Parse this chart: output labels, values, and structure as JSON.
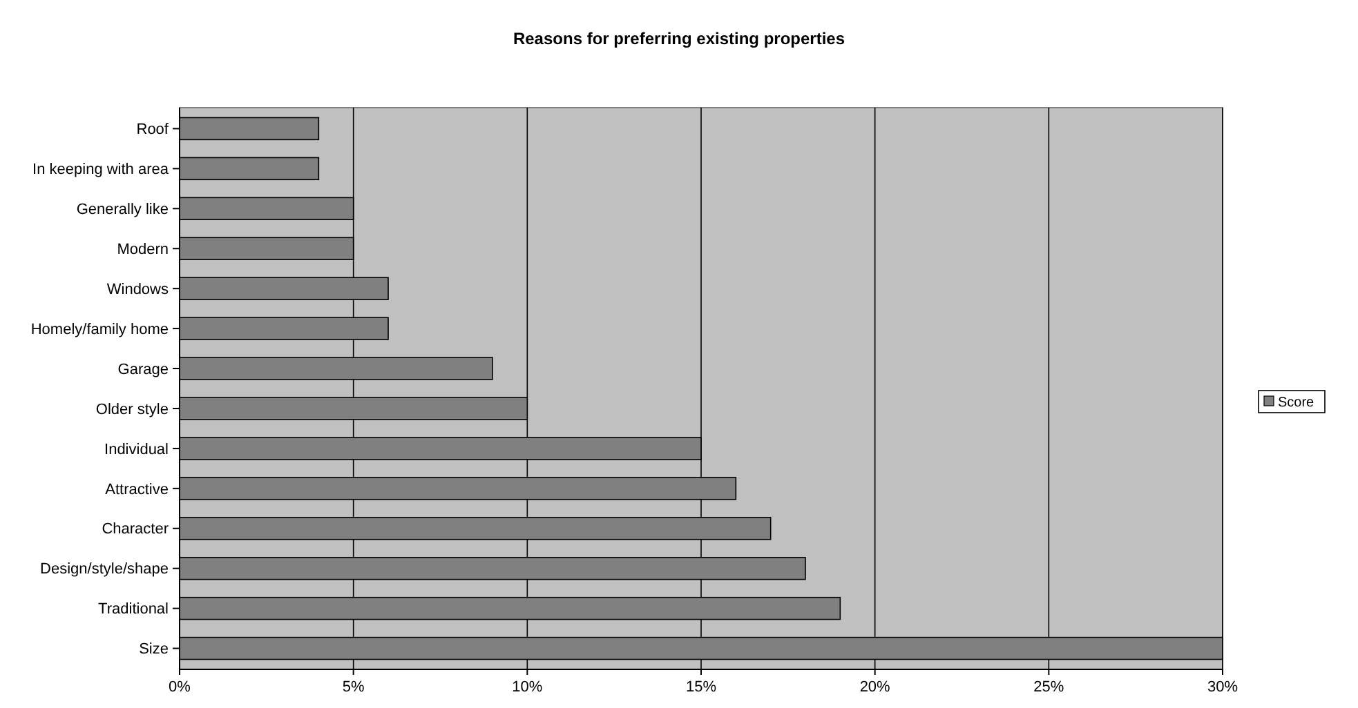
{
  "chart_data": {
    "type": "bar",
    "orientation": "horizontal",
    "title": "Reasons for preferring existing properties",
    "categories": [
      "Roof",
      "In keeping with area",
      "Generally like",
      "Modern",
      "Windows",
      "Homely/family home",
      "Garage",
      "Older style",
      "Individual",
      "Attractive",
      "Character",
      "Design/style/shape",
      "Traditional",
      "Size"
    ],
    "series": [
      {
        "name": "Score",
        "color": "#808080",
        "values": [
          4,
          4,
          5,
          5,
          6,
          6,
          9,
          10,
          15,
          16,
          17,
          18,
          19,
          30
        ]
      }
    ],
    "xlim": [
      0,
      30
    ],
    "xticks": [
      {
        "value": 0,
        "label": "0%"
      },
      {
        "value": 5,
        "label": "5%"
      },
      {
        "value": 10,
        "label": "10%"
      },
      {
        "value": 15,
        "label": "15%"
      },
      {
        "value": 20,
        "label": "20%"
      },
      {
        "value": 25,
        "label": "25%"
      },
      {
        "value": 30,
        "label": "30%"
      }
    ],
    "grid": "x",
    "legend": "right"
  }
}
